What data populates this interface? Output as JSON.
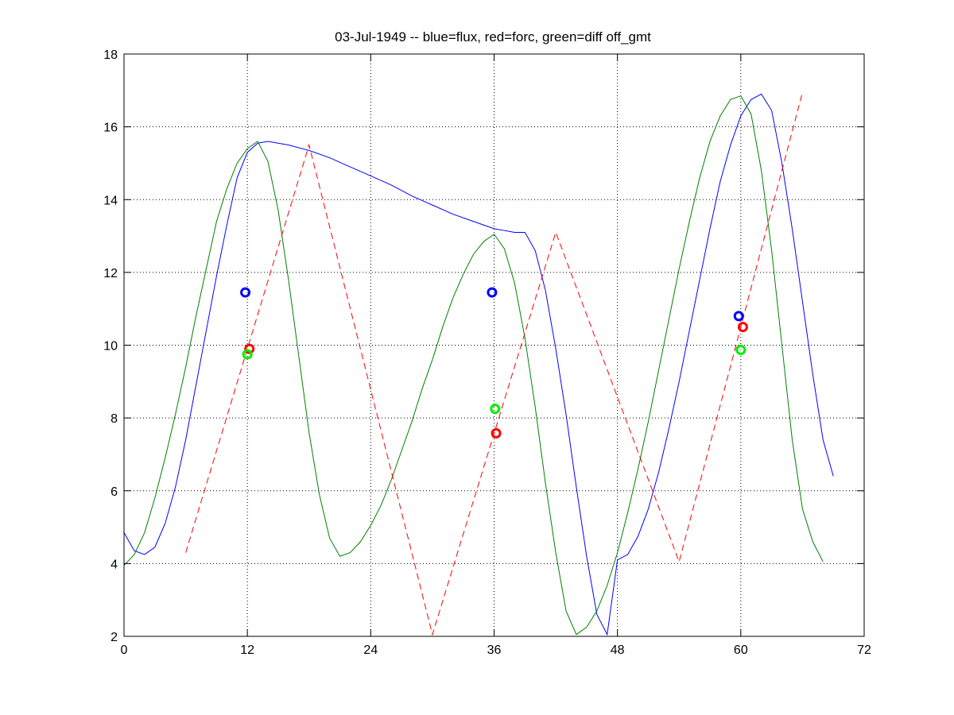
{
  "chart_data": {
    "type": "line",
    "title": "03-Jul-1949 -- blue=flux, red=forc, green=diff off_gmt",
    "xlabel": "",
    "ylabel": "",
    "xlim": [
      0,
      72
    ],
    "ylim": [
      2,
      18
    ],
    "x_ticks": [
      0,
      12,
      24,
      36,
      48,
      60,
      72
    ],
    "y_ticks": [
      2,
      4,
      6,
      8,
      10,
      12,
      14,
      16,
      18
    ],
    "x_tick_labels": [
      "0",
      "12",
      "24",
      "36",
      "48",
      "60",
      "72"
    ],
    "y_tick_labels": [
      "2",
      "4",
      "6",
      "8",
      "10",
      "12",
      "14",
      "16",
      "18"
    ],
    "grid": true,
    "grid_x_only_on_ticks": [
      12,
      24,
      36,
      48,
      60
    ],
    "series": [
      {
        "color": "#0000ff",
        "style": "solid",
        "points": [
          [
            0,
            4.85
          ],
          [
            1,
            4.35
          ],
          [
            2,
            4.25
          ],
          [
            3,
            4.45
          ],
          [
            4,
            5.1
          ],
          [
            5,
            6.1
          ],
          [
            6,
            7.4
          ],
          [
            7,
            8.9
          ],
          [
            8,
            10.4
          ],
          [
            9,
            11.9
          ],
          [
            10,
            13.3
          ],
          [
            11,
            14.6
          ],
          [
            12,
            15.3
          ],
          [
            13,
            15.55
          ],
          [
            14,
            15.6
          ],
          [
            16,
            15.5
          ],
          [
            18,
            15.35
          ],
          [
            20,
            15.15
          ],
          [
            22,
            14.9
          ],
          [
            24,
            14.65
          ],
          [
            26,
            14.4
          ],
          [
            28,
            14.1
          ],
          [
            30,
            13.85
          ],
          [
            32,
            13.6
          ],
          [
            34,
            13.4
          ],
          [
            36,
            13.2
          ],
          [
            37,
            13.15
          ],
          [
            38,
            13.1
          ],
          [
            39,
            13.1
          ],
          [
            40,
            12.6
          ],
          [
            41,
            11.5
          ],
          [
            42,
            9.9
          ],
          [
            43,
            8.1
          ],
          [
            44,
            6.1
          ],
          [
            45,
            4.2
          ],
          [
            46,
            2.6
          ],
          [
            47,
            2.05
          ],
          [
            48,
            4.1
          ],
          [
            49,
            4.25
          ],
          [
            50,
            4.75
          ],
          [
            51,
            5.5
          ],
          [
            52,
            6.5
          ],
          [
            53,
            7.7
          ],
          [
            54,
            9.0
          ],
          [
            55,
            10.4
          ],
          [
            56,
            11.8
          ],
          [
            57,
            13.2
          ],
          [
            58,
            14.5
          ],
          [
            59,
            15.5
          ],
          [
            60,
            16.3
          ],
          [
            61,
            16.75
          ],
          [
            62,
            16.9
          ],
          [
            63,
            16.45
          ],
          [
            64,
            15.0
          ],
          [
            65,
            13.2
          ],
          [
            66,
            11.2
          ],
          [
            67,
            9.2
          ],
          [
            68,
            7.4
          ],
          [
            69,
            6.4
          ]
        ]
      },
      {
        "color": "#008000",
        "style": "solid",
        "points": [
          [
            0,
            3.95
          ],
          [
            1,
            4.25
          ],
          [
            2,
            4.85
          ],
          [
            3,
            5.8
          ],
          [
            4,
            6.9
          ],
          [
            5,
            8.1
          ],
          [
            6,
            9.4
          ],
          [
            7,
            10.8
          ],
          [
            8,
            12.1
          ],
          [
            9,
            13.4
          ],
          [
            10,
            14.3
          ],
          [
            11,
            15.0
          ],
          [
            12,
            15.4
          ],
          [
            13,
            15.6
          ],
          [
            14,
            15.05
          ],
          [
            15,
            13.7
          ],
          [
            16,
            11.8
          ],
          [
            17,
            9.7
          ],
          [
            18,
            7.6
          ],
          [
            19,
            5.9
          ],
          [
            20,
            4.7
          ],
          [
            21,
            4.2
          ],
          [
            22,
            4.3
          ],
          [
            23,
            4.6
          ],
          [
            24,
            5.05
          ],
          [
            25,
            5.6
          ],
          [
            26,
            6.3
          ],
          [
            27,
            7.1
          ],
          [
            28,
            7.9
          ],
          [
            29,
            8.8
          ],
          [
            30,
            9.6
          ],
          [
            31,
            10.5
          ],
          [
            32,
            11.3
          ],
          [
            33,
            11.95
          ],
          [
            34,
            12.5
          ],
          [
            35,
            12.85
          ],
          [
            36,
            13.05
          ],
          [
            37,
            12.65
          ],
          [
            38,
            11.7
          ],
          [
            39,
            10.2
          ],
          [
            40,
            8.3
          ],
          [
            41,
            6.2
          ],
          [
            42,
            4.3
          ],
          [
            43,
            2.7
          ],
          [
            44,
            2.05
          ],
          [
            45,
            2.25
          ],
          [
            46,
            2.7
          ],
          [
            47,
            3.4
          ],
          [
            48,
            4.3
          ],
          [
            49,
            5.4
          ],
          [
            50,
            6.6
          ],
          [
            51,
            7.9
          ],
          [
            52,
            9.3
          ],
          [
            53,
            10.7
          ],
          [
            54,
            12.1
          ],
          [
            55,
            13.4
          ],
          [
            56,
            14.6
          ],
          [
            57,
            15.6
          ],
          [
            58,
            16.3
          ],
          [
            59,
            16.75
          ],
          [
            60,
            16.85
          ],
          [
            61,
            16.35
          ],
          [
            62,
            14.8
          ],
          [
            63,
            12.6
          ],
          [
            64,
            10.0
          ],
          [
            65,
            7.4
          ],
          [
            66,
            5.5
          ],
          [
            67,
            4.6
          ],
          [
            68,
            4.05
          ]
        ]
      },
      {
        "color": "#ff0000",
        "style": "dashed",
        "points": [
          [
            6,
            4.3
          ],
          [
            18,
            15.5
          ],
          [
            30,
            2.05
          ],
          [
            42,
            13.1
          ],
          [
            54,
            4.05
          ],
          [
            66,
            16.95
          ]
        ]
      }
    ],
    "markers": [
      {
        "x": 11.8,
        "y": 11.45,
        "color": "#0000ff"
      },
      {
        "x": 12.2,
        "y": 9.9,
        "color": "#ff0000"
      },
      {
        "x": 12.0,
        "y": 9.75,
        "color": "#00ee00"
      },
      {
        "x": 35.8,
        "y": 11.45,
        "color": "#0000ff"
      },
      {
        "x": 36.1,
        "y": 8.25,
        "color": "#00ee00"
      },
      {
        "x": 36.2,
        "y": 7.58,
        "color": "#ff0000"
      },
      {
        "x": 59.8,
        "y": 10.8,
        "color": "#0000ff"
      },
      {
        "x": 60.2,
        "y": 10.5,
        "color": "#ff0000"
      },
      {
        "x": 60.0,
        "y": 9.87,
        "color": "#00ee00"
      }
    ]
  }
}
